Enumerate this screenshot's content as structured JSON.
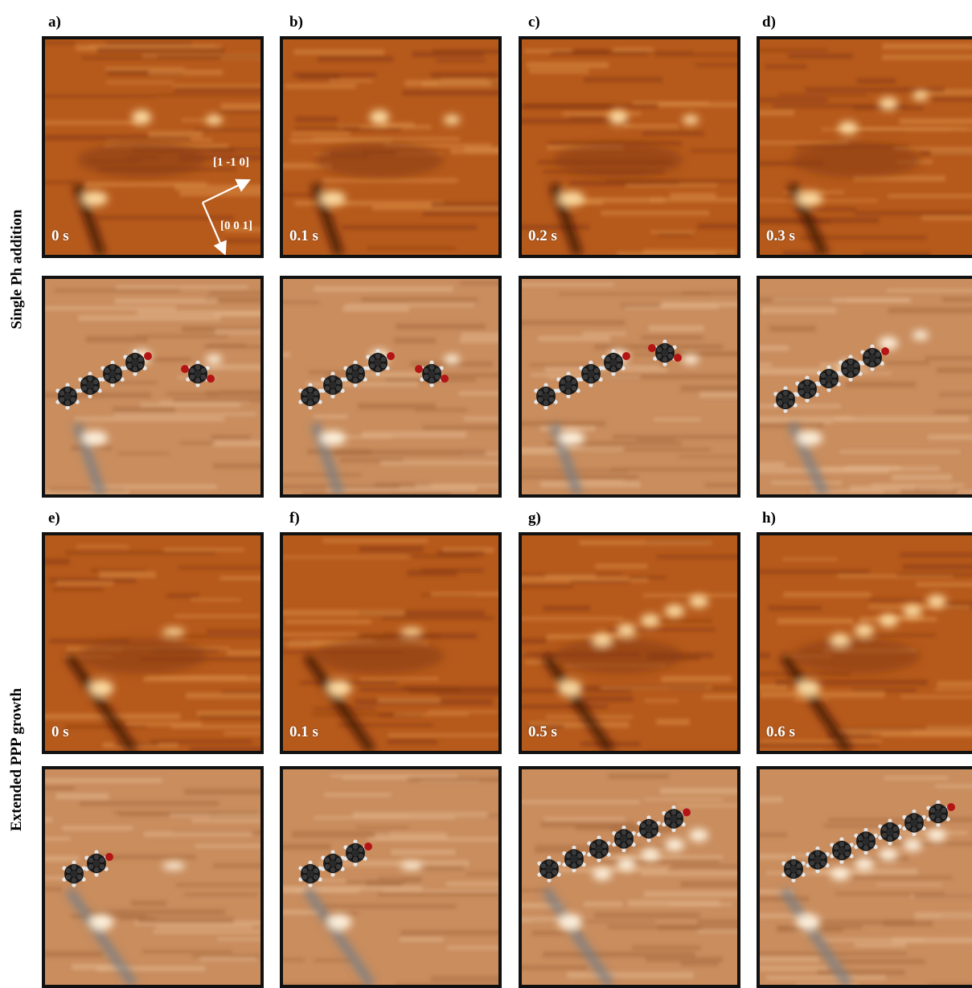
{
  "row_labels": {
    "top": "Single Ph addition",
    "bottom": "Extended PPP growth"
  },
  "panels": [
    {
      "letter": "a)",
      "time": "0 s"
    },
    {
      "letter": "b)",
      "time": "0.1 s"
    },
    {
      "letter": "c)",
      "time": "0.2 s"
    },
    {
      "letter": "d)",
      "time": "0.3 s"
    },
    {
      "letter": "e)",
      "time": "0 s"
    },
    {
      "letter": "f)",
      "time": "0.1 s"
    },
    {
      "letter": "g)",
      "time": "0.5 s"
    },
    {
      "letter": "h)",
      "time": "0.6 s"
    }
  ],
  "directions": {
    "a": "[1 -1 0]",
    "b": "[0 0 1]"
  },
  "colors": {
    "stm_topography": "#b65a1c",
    "stm_derivative": "#c98d5e",
    "carbon": "#1f1f1f",
    "hydrogen": "#e6e6e6",
    "oxygen": "#b51414",
    "tile_border": "#111111"
  },
  "models": {
    "a": {
      "chain_rings": 4,
      "free_ring": true
    },
    "b": {
      "chain_rings": 4,
      "free_ring": true
    },
    "c": {
      "chain_rings": 4,
      "free_ring": true
    },
    "d": {
      "chain_rings": 5,
      "free_ring": false
    },
    "e": {
      "chain_rings": 2,
      "free_ring": false
    },
    "f": {
      "chain_rings": 3,
      "free_ring": false
    },
    "g": {
      "chain_rings": 6,
      "free_ring": false
    },
    "h": {
      "chain_rings": 7,
      "free_ring": false
    }
  }
}
